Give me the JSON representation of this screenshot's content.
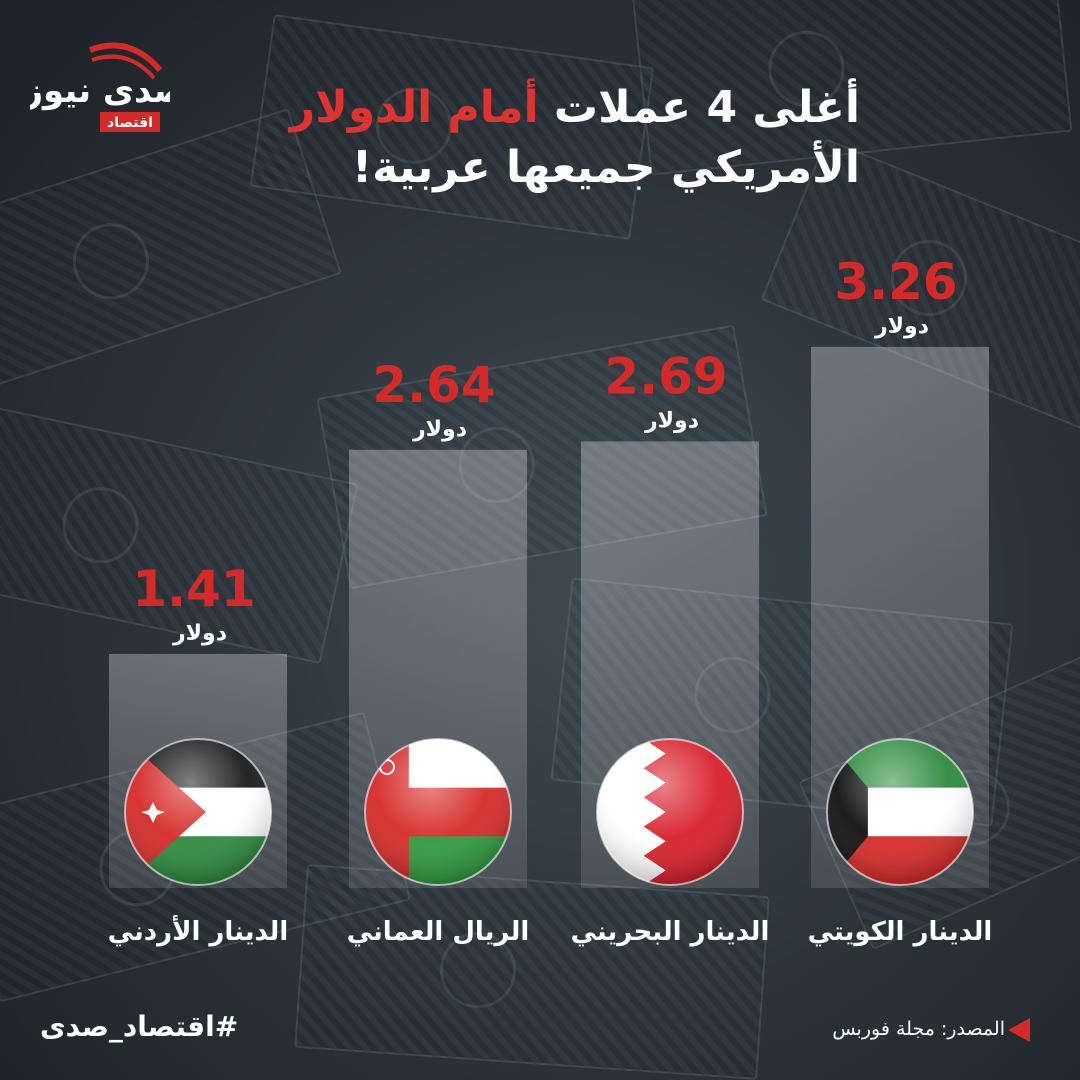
{
  "header": {
    "title_line1_pre": "أغلى 4 عملات ",
    "title_line1_highlight": "أمام الدولار",
    "title_line2": "الأمريكي جميعها عربية!"
  },
  "logo": {
    "brand": "صدى نيوز",
    "section": "اقتصاد"
  },
  "colors": {
    "accent": "#d52a27",
    "text": "#ffffff"
  },
  "chart_data": {
    "type": "bar",
    "categories": [
      "الدينار الأردني",
      "الريال العماني",
      "الدينار البحريني",
      "الدينار الكويتي"
    ],
    "values": [
      1.41,
      2.64,
      2.69,
      3.26
    ],
    "value_labels": [
      "1.41",
      "2.64",
      "2.69",
      "3.26"
    ],
    "unit": "دولار",
    "flags": [
      "jordan-flag",
      "oman-flag",
      "bahrain-flag",
      "kuwait-flag"
    ],
    "title": "",
    "xlabel": "",
    "ylabel": ""
  },
  "footer": {
    "hashtag": "#اقتصاد_صدى",
    "source": "المصدر: مجلة فوربس"
  }
}
